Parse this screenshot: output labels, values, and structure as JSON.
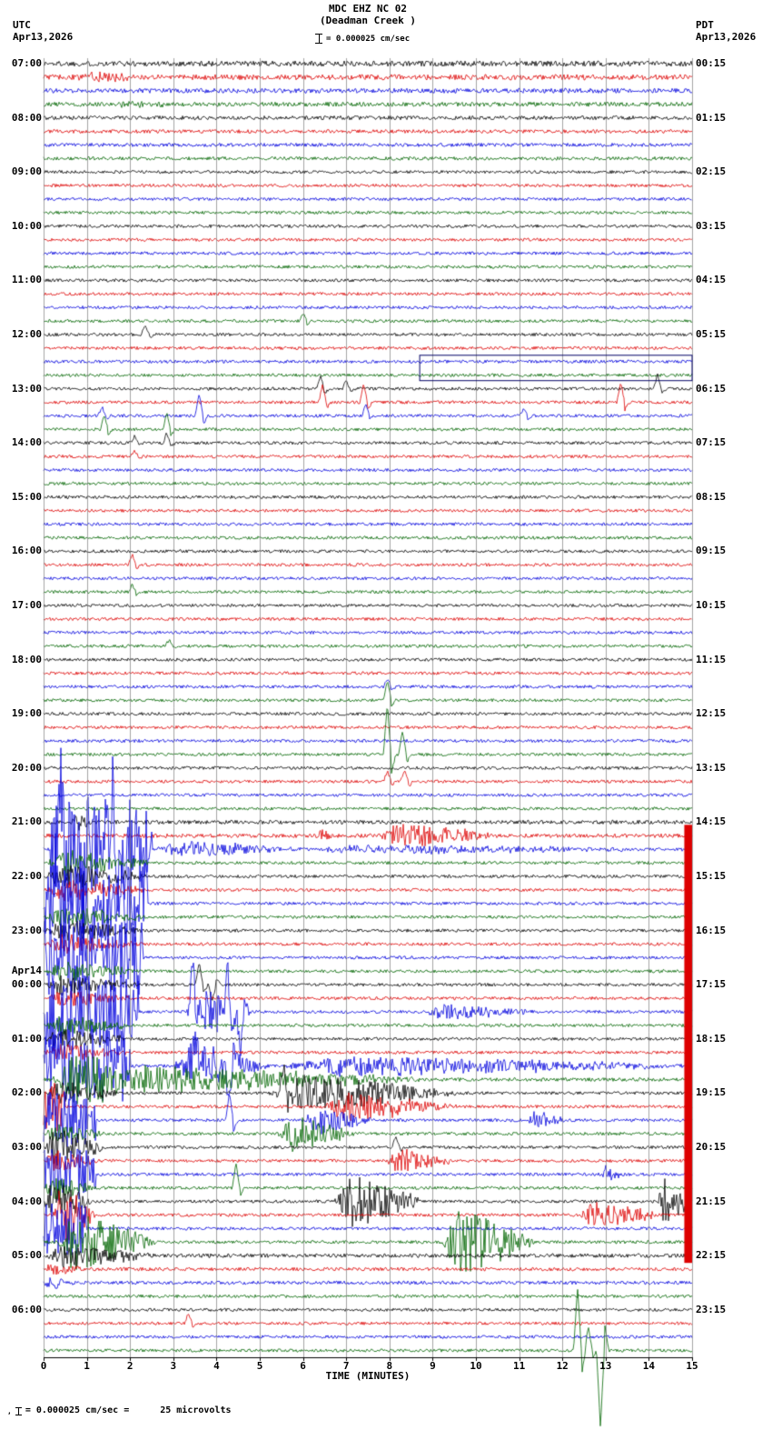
{
  "header": {
    "title": "MDC EHZ NC 02",
    "subtitle": "(Deadman Creek )",
    "left_tz": "UTC",
    "left_date": "Apr13,2026",
    "right_tz": "PDT",
    "right_date": "Apr13,2026",
    "scale_text": "= 0.000025 cm/sec"
  },
  "footer": {
    "mark": ",",
    "scale_text": "= 0.000025 cm/sec =",
    "microvolts": "25 microvolts"
  },
  "axis": {
    "xlabel": "TIME (MINUTES)",
    "ticks": [
      "0",
      "1",
      "2",
      "3",
      "4",
      "5",
      "6",
      "7",
      "8",
      "9",
      "10",
      "11",
      "12",
      "13",
      "14",
      "15"
    ]
  },
  "colors": {
    "black": "#000000",
    "red": "#dd0000",
    "blue": "#0000dd",
    "green": "#006600",
    "grid": "#7a7a7a",
    "box": "#000066"
  },
  "chart_data": {
    "type": "line",
    "variant": "helicorder-seismogram",
    "station": "MDC EHZ NC 02",
    "x_range": [
      0,
      15
    ],
    "minutes_per_row": 15,
    "num_rows": 96,
    "color_cycle": [
      "black",
      "red",
      "blue",
      "green"
    ],
    "base_noise": 1.7,
    "noise_overrides": {
      "0": 3.0,
      "1": 3.0,
      "2": 2.6,
      "3": 2.4,
      "4": 2.2,
      "5": 2.0,
      "6": 2.0,
      "7": 1.9,
      "56": 2.2,
      "57": 2.2,
      "75": 2.0,
      "88": 2.2,
      "89": 1.9,
      "90": 1.9
    },
    "utc_labels": [
      {
        "row": 0,
        "text": "07:00"
      },
      {
        "row": 4,
        "text": "08:00"
      },
      {
        "row": 8,
        "text": "09:00"
      },
      {
        "row": 12,
        "text": "10:00"
      },
      {
        "row": 16,
        "text": "11:00"
      },
      {
        "row": 20,
        "text": "12:00"
      },
      {
        "row": 24,
        "text": "13:00"
      },
      {
        "row": 28,
        "text": "14:00"
      },
      {
        "row": 32,
        "text": "15:00"
      },
      {
        "row": 36,
        "text": "16:00"
      },
      {
        "row": 40,
        "text": "17:00"
      },
      {
        "row": 44,
        "text": "18:00"
      },
      {
        "row": 48,
        "text": "19:00"
      },
      {
        "row": 52,
        "text": "20:00"
      },
      {
        "row": 56,
        "text": "21:00"
      },
      {
        "row": 60,
        "text": "22:00"
      },
      {
        "row": 64,
        "text": "23:00"
      },
      {
        "row": 67,
        "text": "Apr14",
        "date": true
      },
      {
        "row": 68,
        "text": "00:00"
      },
      {
        "row": 72,
        "text": "01:00"
      },
      {
        "row": 76,
        "text": "02:00"
      },
      {
        "row": 80,
        "text": "03:00"
      },
      {
        "row": 84,
        "text": "04:00"
      },
      {
        "row": 88,
        "text": "05:00"
      },
      {
        "row": 92,
        "text": "06:00"
      }
    ],
    "pdt_labels": [
      {
        "row": 0,
        "text": "00:15"
      },
      {
        "row": 4,
        "text": "01:15"
      },
      {
        "row": 8,
        "text": "02:15"
      },
      {
        "row": 12,
        "text": "03:15"
      },
      {
        "row": 16,
        "text": "04:15"
      },
      {
        "row": 20,
        "text": "05:15"
      },
      {
        "row": 24,
        "text": "06:15"
      },
      {
        "row": 28,
        "text": "07:15"
      },
      {
        "row": 32,
        "text": "08:15"
      },
      {
        "row": 36,
        "text": "09:15"
      },
      {
        "row": 40,
        "text": "10:15"
      },
      {
        "row": 44,
        "text": "11:15"
      },
      {
        "row": 48,
        "text": "12:15"
      },
      {
        "row": 52,
        "text": "13:15"
      },
      {
        "row": 56,
        "text": "14:15"
      },
      {
        "row": 60,
        "text": "15:15"
      },
      {
        "row": 64,
        "text": "16:15"
      },
      {
        "row": 68,
        "text": "17:15"
      },
      {
        "row": 72,
        "text": "18:15"
      },
      {
        "row": 76,
        "text": "19:15"
      },
      {
        "row": 80,
        "text": "20:15"
      },
      {
        "row": 84,
        "text": "21:15"
      },
      {
        "row": 88,
        "text": "22:15"
      },
      {
        "row": 92,
        "text": "23:15"
      }
    ],
    "events": [
      {
        "row": 1,
        "type": "burst",
        "t": 0.7,
        "dur": 2.0,
        "amp": 4
      },
      {
        "row": 3,
        "type": "burst",
        "t": 1.5,
        "dur": 2.0,
        "amp": 3
      },
      {
        "row": 19,
        "type": "spike",
        "t": 6.0,
        "amp": 9
      },
      {
        "row": 20,
        "type": "spike",
        "t": 2.35,
        "amp": 11
      },
      {
        "row": 24,
        "type": "spike",
        "t": 6.4,
        "amp": 14
      },
      {
        "row": 24,
        "type": "spike",
        "t": 7.0,
        "amp": 9
      },
      {
        "row": 24,
        "type": "spike",
        "t": 14.2,
        "amp": 16
      },
      {
        "row": 25,
        "type": "spike",
        "t": 6.45,
        "amp": 18
      },
      {
        "row": 25,
        "type": "spike",
        "t": 7.4,
        "amp": 20
      },
      {
        "row": 25,
        "type": "spike",
        "t": 13.35,
        "amp": 22
      },
      {
        "row": 26,
        "type": "spike",
        "t": 1.35,
        "amp": 10
      },
      {
        "row": 26,
        "type": "spike",
        "t": 3.6,
        "amp": 24
      },
      {
        "row": 26,
        "type": "spike",
        "t": 7.45,
        "amp": 12
      },
      {
        "row": 26,
        "type": "spike",
        "t": 11.1,
        "amp": 8
      },
      {
        "row": 27,
        "type": "spike",
        "t": 1.4,
        "amp": 16
      },
      {
        "row": 27,
        "type": "spike",
        "t": 2.85,
        "amp": 18
      },
      {
        "row": 28,
        "type": "spike",
        "t": 2.1,
        "amp": 7
      },
      {
        "row": 28,
        "type": "spike",
        "t": 2.85,
        "amp": 11
      },
      {
        "row": 29,
        "type": "spike",
        "t": 2.1,
        "amp": 6
      },
      {
        "row": 37,
        "type": "spike",
        "t": 2.05,
        "amp": 12
      },
      {
        "row": 39,
        "type": "spike",
        "t": 2.05,
        "amp": 8
      },
      {
        "row": 43,
        "type": "spike",
        "t": 2.9,
        "amp": 7
      },
      {
        "row": 46,
        "type": "spike",
        "t": 7.95,
        "amp": 9
      },
      {
        "row": 47,
        "type": "spike",
        "t": 7.95,
        "amp": 22
      },
      {
        "row": 51,
        "type": "spike",
        "t": 7.95,
        "amp": 55
      },
      {
        "row": 51,
        "type": "spike",
        "t": 8.3,
        "amp": 26
      },
      {
        "row": 53,
        "type": "spike",
        "t": 7.95,
        "amp": 12
      },
      {
        "row": 53,
        "type": "spike",
        "t": 8.35,
        "amp": 14
      },
      {
        "row": 56,
        "type": "burst",
        "t": 0.65,
        "dur": 0.45,
        "amp": 11
      },
      {
        "row": 57,
        "type": "burst",
        "t": 6.3,
        "dur": 0.5,
        "amp": 8
      },
      {
        "row": 57,
        "type": "burst",
        "t": 7.7,
        "dur": 2.9,
        "amp": 14
      },
      {
        "row": 58,
        "type": "sat",
        "t": 0.15,
        "dur": 2.35,
        "amp": 55
      },
      {
        "row": 58,
        "type": "spike",
        "t": 0.4,
        "amp": 70
      },
      {
        "row": 58,
        "type": "spike",
        "t": 0.9,
        "amp": -66
      },
      {
        "row": 58,
        "type": "spike",
        "t": 1.6,
        "amp": 60
      },
      {
        "row": 58,
        "type": "burst",
        "t": 2.5,
        "dur": 3.5,
        "amp": 9
      },
      {
        "row": 58,
        "type": "burst",
        "t": 6.0,
        "dur": 9.0,
        "amp": 5
      },
      {
        "row": 59,
        "type": "burst",
        "t": 0.0,
        "dur": 2.5,
        "amp": 14
      },
      {
        "row": 60,
        "type": "burst",
        "t": 0.0,
        "dur": 2.5,
        "amp": 13
      },
      {
        "row": 61,
        "type": "burst",
        "t": 0.0,
        "dur": 2.5,
        "amp": 11
      },
      {
        "row": 62,
        "type": "sat",
        "t": 0.0,
        "dur": 2.4,
        "amp": 45
      },
      {
        "row": 62,
        "type": "spike",
        "t": 0.3,
        "amp": 58
      },
      {
        "row": 62,
        "type": "spike",
        "t": 1.1,
        "amp": -54
      },
      {
        "row": 63,
        "type": "burst",
        "t": 0.0,
        "dur": 2.4,
        "amp": 11
      },
      {
        "row": 64,
        "type": "burst",
        "t": 0.0,
        "dur": 2.4,
        "amp": 11
      },
      {
        "row": 65,
        "type": "burst",
        "t": 0.0,
        "dur": 2.3,
        "amp": 10
      },
      {
        "row": 66,
        "type": "sat",
        "t": 0.0,
        "dur": 2.3,
        "amp": 45
      },
      {
        "row": 66,
        "type": "spike",
        "t": 0.5,
        "amp": 52
      },
      {
        "row": 67,
        "type": "burst",
        "t": 0.0,
        "dur": 2.3,
        "amp": 11
      },
      {
        "row": 68,
        "type": "burst",
        "t": 0.0,
        "dur": 2.2,
        "amp": 11
      },
      {
        "row": 68,
        "type": "spike",
        "t": 3.6,
        "amp": 25
      },
      {
        "row": 68,
        "type": "spike",
        "t": 3.9,
        "amp": -18
      },
      {
        "row": 69,
        "type": "burst",
        "t": 0.0,
        "dur": 2.2,
        "amp": 9
      },
      {
        "row": 70,
        "type": "sat",
        "t": 0.0,
        "dur": 2.2,
        "amp": 42
      },
      {
        "row": 70,
        "type": "spike",
        "t": 3.45,
        "amp": 55
      },
      {
        "row": 70,
        "type": "spike",
        "t": 4.25,
        "amp": 50
      },
      {
        "row": 70,
        "type": "spike",
        "t": 4.55,
        "amp": -45
      },
      {
        "row": 70,
        "type": "burst",
        "t": 3.3,
        "dur": 1.5,
        "amp": 30
      },
      {
        "row": 70,
        "type": "burst",
        "t": 8.8,
        "dur": 2.6,
        "amp": 9
      },
      {
        "row": 71,
        "type": "burst",
        "t": 0.0,
        "dur": 2.1,
        "amp": 11
      },
      {
        "row": 72,
        "type": "burst",
        "t": 0.0,
        "dur": 2.0,
        "amp": 11
      },
      {
        "row": 73,
        "type": "burst",
        "t": 0.0,
        "dur": 2.0,
        "amp": 9
      },
      {
        "row": 74,
        "type": "sat",
        "t": 0.0,
        "dur": 2.0,
        "amp": 40
      },
      {
        "row": 74,
        "type": "spike",
        "t": 3.5,
        "amp": 42
      },
      {
        "row": 74,
        "type": "spike",
        "t": 4.3,
        "amp": -40
      },
      {
        "row": 74,
        "type": "burst",
        "t": 3.0,
        "dur": 2.2,
        "amp": 26
      },
      {
        "row": 74,
        "type": "burst",
        "t": 5.2,
        "dur": 9.8,
        "amp": 11
      },
      {
        "row": 75,
        "type": "burst",
        "t": 0.0,
        "dur": 9.0,
        "amp": 16
      },
      {
        "row": 75,
        "type": "burst",
        "t": 0.3,
        "dur": 1.8,
        "amp": 26
      },
      {
        "row": 76,
        "type": "burst",
        "t": 0.0,
        "dur": 1.8,
        "amp": 13
      },
      {
        "row": 76,
        "type": "burst",
        "t": 5.2,
        "dur": 4.4,
        "amp": 20
      },
      {
        "row": 76,
        "type": "spike",
        "t": 5.55,
        "amp": 34
      },
      {
        "row": 77,
        "type": "sat",
        "t": 0.0,
        "dur": 0.5,
        "amp": 26
      },
      {
        "row": 77,
        "type": "burst",
        "t": 6.4,
        "dur": 3.3,
        "amp": 16
      },
      {
        "row": 78,
        "type": "sat",
        "t": 0.0,
        "dur": 1.2,
        "amp": 30
      },
      {
        "row": 78,
        "type": "spike",
        "t": 4.3,
        "amp": 30
      },
      {
        "row": 78,
        "type": "burst",
        "t": 6.0,
        "dur": 1.6,
        "amp": 16
      },
      {
        "row": 78,
        "type": "burst",
        "t": 11.2,
        "dur": 0.9,
        "amp": 10
      },
      {
        "row": 79,
        "type": "burst",
        "t": 0.0,
        "dur": 1.5,
        "amp": 11
      },
      {
        "row": 79,
        "type": "burst",
        "t": 5.4,
        "dur": 1.8,
        "amp": 20
      },
      {
        "row": 80,
        "type": "burst",
        "t": 0.0,
        "dur": 1.5,
        "amp": 22
      },
      {
        "row": 80,
        "type": "spike",
        "t": 8.15,
        "amp": 12
      },
      {
        "row": 81,
        "type": "burst",
        "t": 0.0,
        "dur": 1.3,
        "amp": 13
      },
      {
        "row": 81,
        "type": "burst",
        "t": 7.9,
        "dur": 1.7,
        "amp": 13
      },
      {
        "row": 82,
        "type": "sat",
        "t": 0.0,
        "dur": 1.2,
        "amp": 28
      },
      {
        "row": 82,
        "type": "burst",
        "t": 12.9,
        "dur": 0.5,
        "amp": 11
      },
      {
        "row": 83,
        "type": "burst",
        "t": 0.0,
        "dur": 1.2,
        "amp": 13
      },
      {
        "row": 83,
        "type": "spike",
        "t": 4.45,
        "amp": 26
      },
      {
        "row": 84,
        "type": "burst",
        "t": 0.0,
        "dur": 1.1,
        "amp": 26
      },
      {
        "row": 84,
        "type": "burst",
        "t": 6.7,
        "dur": 2.1,
        "amp": 30
      },
      {
        "row": 84,
        "type": "burst",
        "t": 14.2,
        "dur": 0.8,
        "amp": 28
      },
      {
        "row": 85,
        "type": "burst",
        "t": 0.2,
        "dur": 1.0,
        "amp": 34
      },
      {
        "row": 85,
        "type": "burst",
        "t": 12.4,
        "dur": 1.9,
        "amp": 16
      },
      {
        "row": 86,
        "type": "sat",
        "t": 0.0,
        "dur": 1.0,
        "amp": 32
      },
      {
        "row": 87,
        "type": "burst",
        "t": 0.3,
        "dur": 2.3,
        "amp": 34
      },
      {
        "row": 87,
        "type": "burst",
        "t": 9.2,
        "dur": 2.2,
        "amp": 38
      },
      {
        "row": 88,
        "type": "burst",
        "t": 0.0,
        "dur": 2.5,
        "amp": 13
      },
      {
        "row": 89,
        "type": "burst",
        "t": 0.0,
        "dur": 1.0,
        "amp": 7
      },
      {
        "row": 90,
        "type": "burst",
        "t": 0.0,
        "dur": 0.8,
        "amp": 7
      },
      {
        "row": 93,
        "type": "spike",
        "t": 3.35,
        "amp": 11
      },
      {
        "row": 95,
        "type": "spike",
        "t": 12.35,
        "amp": 70
      },
      {
        "row": 95,
        "type": "spike",
        "t": 12.6,
        "amp": 25
      },
      {
        "row": 95,
        "type": "spike",
        "t": 12.88,
        "amp": -85
      }
    ],
    "right_band": {
      "row_start": 57,
      "row_end": 88,
      "min_start": 14.82,
      "min_end": 15,
      "color": "red"
    },
    "cal_box": {
      "row_start": 22,
      "row_end": 23,
      "min_start": 8.7,
      "min_end": 15
    }
  }
}
